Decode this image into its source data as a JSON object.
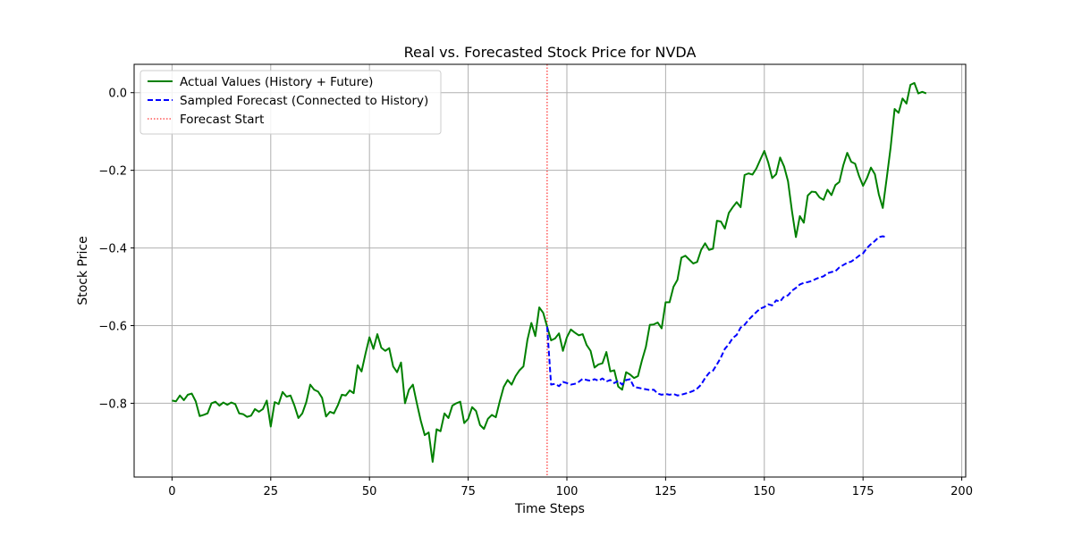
{
  "chart_data": {
    "type": "line",
    "title": "Real vs. Forecasted Stock Price for NVDA",
    "xlabel": "Time Steps",
    "ylabel": "Stock Price",
    "xlim": [
      -9.6,
      201
    ],
    "ylim": [
      -0.99,
      0.073
    ],
    "xticks": [
      0,
      25,
      50,
      75,
      100,
      125,
      150,
      175,
      200
    ],
    "yticks": [
      -0.8,
      -0.6,
      -0.4,
      -0.2,
      0.0
    ],
    "xtick_labels": [
      "0",
      "25",
      "50",
      "75",
      "100",
      "125",
      "150",
      "175",
      "200"
    ],
    "ytick_labels": [
      "−0.8",
      "−0.6",
      "−0.4",
      "−0.2",
      "0.0"
    ],
    "grid": true,
    "legend_position": "top-left",
    "forecast_start": 95,
    "series": [
      {
        "name": "Actual Values (History + Future)",
        "color": "#008000",
        "style": "solid",
        "x_start": 0,
        "values": [
          -0.793,
          -0.795,
          -0.78,
          -0.792,
          -0.778,
          -0.775,
          -0.795,
          -0.833,
          -0.83,
          -0.826,
          -0.8,
          -0.796,
          -0.806,
          -0.798,
          -0.804,
          -0.798,
          -0.802,
          -0.826,
          -0.828,
          -0.835,
          -0.832,
          -0.815,
          -0.822,
          -0.815,
          -0.793,
          -0.86,
          -0.797,
          -0.802,
          -0.771,
          -0.783,
          -0.78,
          -0.806,
          -0.838,
          -0.826,
          -0.797,
          -0.752,
          -0.765,
          -0.77,
          -0.786,
          -0.834,
          -0.822,
          -0.826,
          -0.805,
          -0.778,
          -0.78,
          -0.767,
          -0.774,
          -0.702,
          -0.718,
          -0.672,
          -0.63,
          -0.66,
          -0.622,
          -0.657,
          -0.665,
          -0.658,
          -0.705,
          -0.72,
          -0.695,
          -0.8,
          -0.765,
          -0.752,
          -0.8,
          -0.845,
          -0.882,
          -0.875,
          -0.951,
          -0.867,
          -0.872,
          -0.826,
          -0.838,
          -0.806,
          -0.8,
          -0.796,
          -0.851,
          -0.84,
          -0.81,
          -0.82,
          -0.856,
          -0.866,
          -0.84,
          -0.83,
          -0.836,
          -0.795,
          -0.758,
          -0.74,
          -0.752,
          -0.73,
          -0.715,
          -0.705,
          -0.637,
          -0.593,
          -0.627,
          -0.553,
          -0.567,
          -0.603,
          -0.638,
          -0.633,
          -0.62,
          -0.665,
          -0.63,
          -0.61,
          -0.618,
          -0.625,
          -0.622,
          -0.65,
          -0.665,
          -0.708,
          -0.7,
          -0.697,
          -0.668,
          -0.718,
          -0.715,
          -0.757,
          -0.765,
          -0.72,
          -0.726,
          -0.735,
          -0.73,
          -0.69,
          -0.655,
          -0.598,
          -0.597,
          -0.592,
          -0.607,
          -0.54,
          -0.54,
          -0.5,
          -0.482,
          -0.425,
          -0.42,
          -0.43,
          -0.44,
          -0.436,
          -0.405,
          -0.388,
          -0.405,
          -0.402,
          -0.33,
          -0.332,
          -0.35,
          -0.31,
          -0.295,
          -0.282,
          -0.295,
          -0.212,
          -0.208,
          -0.211,
          -0.195,
          -0.172,
          -0.15,
          -0.18,
          -0.22,
          -0.21,
          -0.167,
          -0.19,
          -0.228,
          -0.305,
          -0.372,
          -0.318,
          -0.335,
          -0.265,
          -0.255,
          -0.256,
          -0.27,
          -0.276,
          -0.25,
          -0.264,
          -0.238,
          -0.23,
          -0.187,
          -0.155,
          -0.178,
          -0.183,
          -0.215,
          -0.24,
          -0.22,
          -0.193,
          -0.21,
          -0.262,
          -0.297,
          -0.22,
          -0.14,
          -0.042,
          -0.052,
          -0.015,
          -0.028,
          0.02,
          0.025,
          -0.002,
          0.002,
          -0.002
        ]
      },
      {
        "name": "Sampled Forecast (Connected to History)",
        "color": "#0000ff",
        "style": "dashed",
        "x_start": 95,
        "values": [
          -0.603,
          -0.752,
          -0.75,
          -0.756,
          -0.745,
          -0.748,
          -0.752,
          -0.75,
          -0.745,
          -0.737,
          -0.74,
          -0.742,
          -0.738,
          -0.742,
          -0.736,
          -0.744,
          -0.74,
          -0.748,
          -0.742,
          -0.752,
          -0.74,
          -0.738,
          -0.758,
          -0.76,
          -0.762,
          -0.764,
          -0.766,
          -0.765,
          -0.775,
          -0.778,
          -0.776,
          -0.778,
          -0.776,
          -0.78,
          -0.778,
          -0.775,
          -0.772,
          -0.768,
          -0.762,
          -0.752,
          -0.735,
          -0.722,
          -0.716,
          -0.7,
          -0.682,
          -0.66,
          -0.648,
          -0.632,
          -0.624,
          -0.605,
          -0.598,
          -0.585,
          -0.575,
          -0.565,
          -0.556,
          -0.552,
          -0.545,
          -0.548,
          -0.535,
          -0.538,
          -0.525,
          -0.522,
          -0.51,
          -0.503,
          -0.494,
          -0.49,
          -0.488,
          -0.485,
          -0.48,
          -0.476,
          -0.473,
          -0.465,
          -0.462,
          -0.46,
          -0.45,
          -0.444,
          -0.438,
          -0.435,
          -0.428,
          -0.42,
          -0.414,
          -0.4,
          -0.39,
          -0.382,
          -0.372,
          -0.37,
          -0.372
        ]
      }
    ],
    "vlines": [
      {
        "name": "Forecast Start",
        "x": 95,
        "color": "#ff0000",
        "style": "dotted"
      }
    ]
  }
}
